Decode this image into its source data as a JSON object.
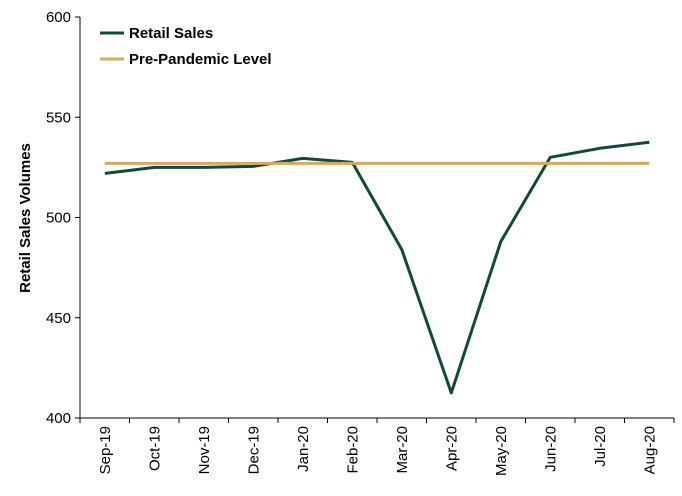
{
  "chart_data": {
    "type": "line",
    "categories": [
      "Sep-19",
      "Oct-19",
      "Nov-19",
      "Dec-19",
      "Jan-20",
      "Feb-20",
      "Mar-20",
      "Apr-20",
      "May-20",
      "Jun-20",
      "Jul-20",
      "Aug-20"
    ],
    "series": [
      {
        "name": "Retail Sales",
        "color": "#0f4a3c",
        "values": [
          522,
          525,
          525,
          525.5,
          529.5,
          527.5,
          484,
          412.5,
          488,
          530,
          534.5,
          537.5
        ]
      },
      {
        "name": "Pre-Pandemic Level",
        "color": "#d4aa63",
        "values": [
          527,
          527,
          527,
          527,
          527,
          527,
          527,
          527,
          527,
          527,
          527,
          527
        ]
      }
    ],
    "ylabel": "Retail Sales Volumes",
    "xlabel": "",
    "ylim": [
      400,
      600
    ],
    "yticks": [
      400,
      450,
      500,
      550,
      600
    ],
    "grid": false,
    "legend_position": "top-left"
  }
}
